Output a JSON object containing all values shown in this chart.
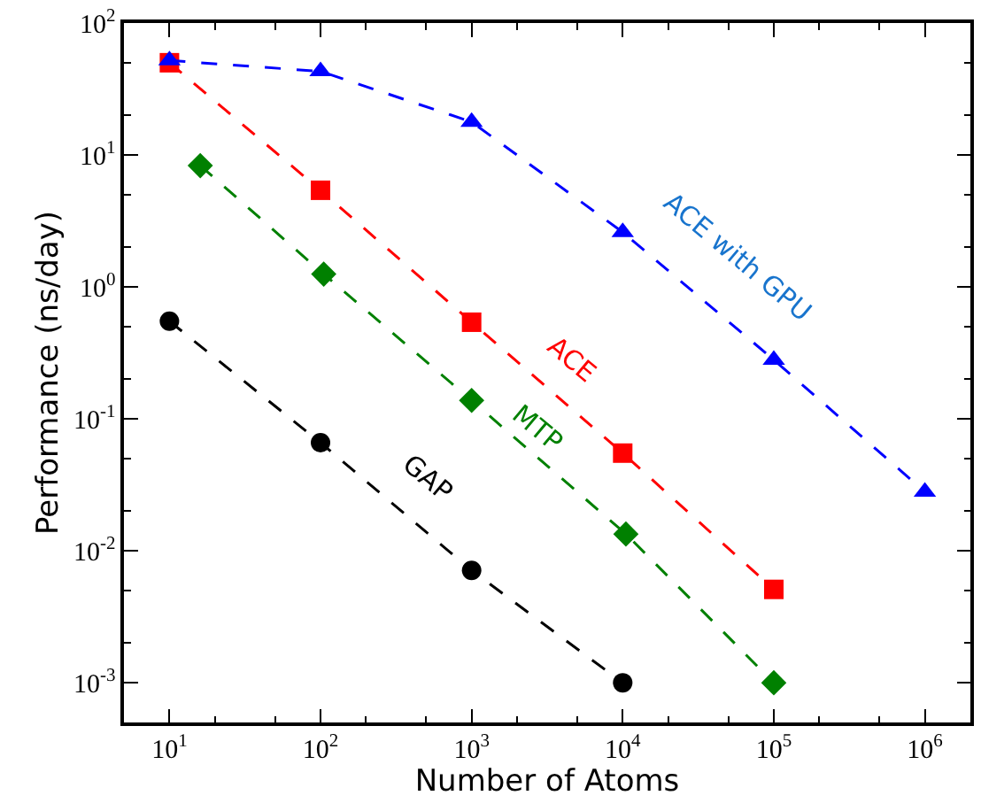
{
  "chart_data": {
    "type": "line",
    "xlabel": "Number of Atoms",
    "ylabel": "Performance (ns/day)",
    "log": "xy",
    "legend": false,
    "line_style": "dashed",
    "xlim": [
      5,
      2000000
    ],
    "ylim": [
      0.0005,
      100
    ],
    "xticks": [
      {
        "value": 10,
        "label": "10$^{1}$"
      },
      {
        "value": 100,
        "label": "10$^{2}$"
      },
      {
        "value": 1000,
        "label": "10$^{3}$"
      },
      {
        "value": 10000,
        "label": "10$^{4}$"
      },
      {
        "value": 100000,
        "label": "10$^{5}$"
      },
      {
        "value": 1000000,
        "label": "10$^{6}$"
      }
    ],
    "yticks": [
      {
        "value": 0.001,
        "label": "10$^{-3}$"
      },
      {
        "value": 0.01,
        "label": "10$^{-2}$"
      },
      {
        "value": 0.1,
        "label": "10$^{-1}$"
      },
      {
        "value": 1,
        "label": "10$^{0}$"
      },
      {
        "value": 10,
        "label": "10$^{1}$"
      },
      {
        "value": 100,
        "label": "10$^{2}$"
      }
    ],
    "series": [
      {
        "name": "ACE with GPU",
        "color": "#0000ff",
        "marker": "triangle",
        "x": [
          10,
          100,
          1000,
          10000,
          100000,
          1000000
        ],
        "values": [
          52,
          43,
          17.8,
          2.6,
          0.28,
          0.028
        ]
      },
      {
        "name": "ACE",
        "color": "#ff0000",
        "marker": "square",
        "x": [
          10,
          100,
          1000,
          10000,
          100000
        ],
        "values": [
          50,
          5.4,
          0.54,
          0.055,
          0.0051
        ]
      },
      {
        "name": "MTP",
        "color": "#008000",
        "marker": "diamond",
        "x": [
          16,
          105,
          1000,
          10500,
          100000
        ],
        "values": [
          8.3,
          1.25,
          0.138,
          0.0134,
          0.001
        ]
      },
      {
        "name": "GAP",
        "color": "#000000",
        "marker": "circle",
        "x": [
          10,
          100,
          1000,
          10000
        ],
        "values": [
          0.55,
          0.066,
          0.0071,
          0.001
        ]
      }
    ]
  }
}
